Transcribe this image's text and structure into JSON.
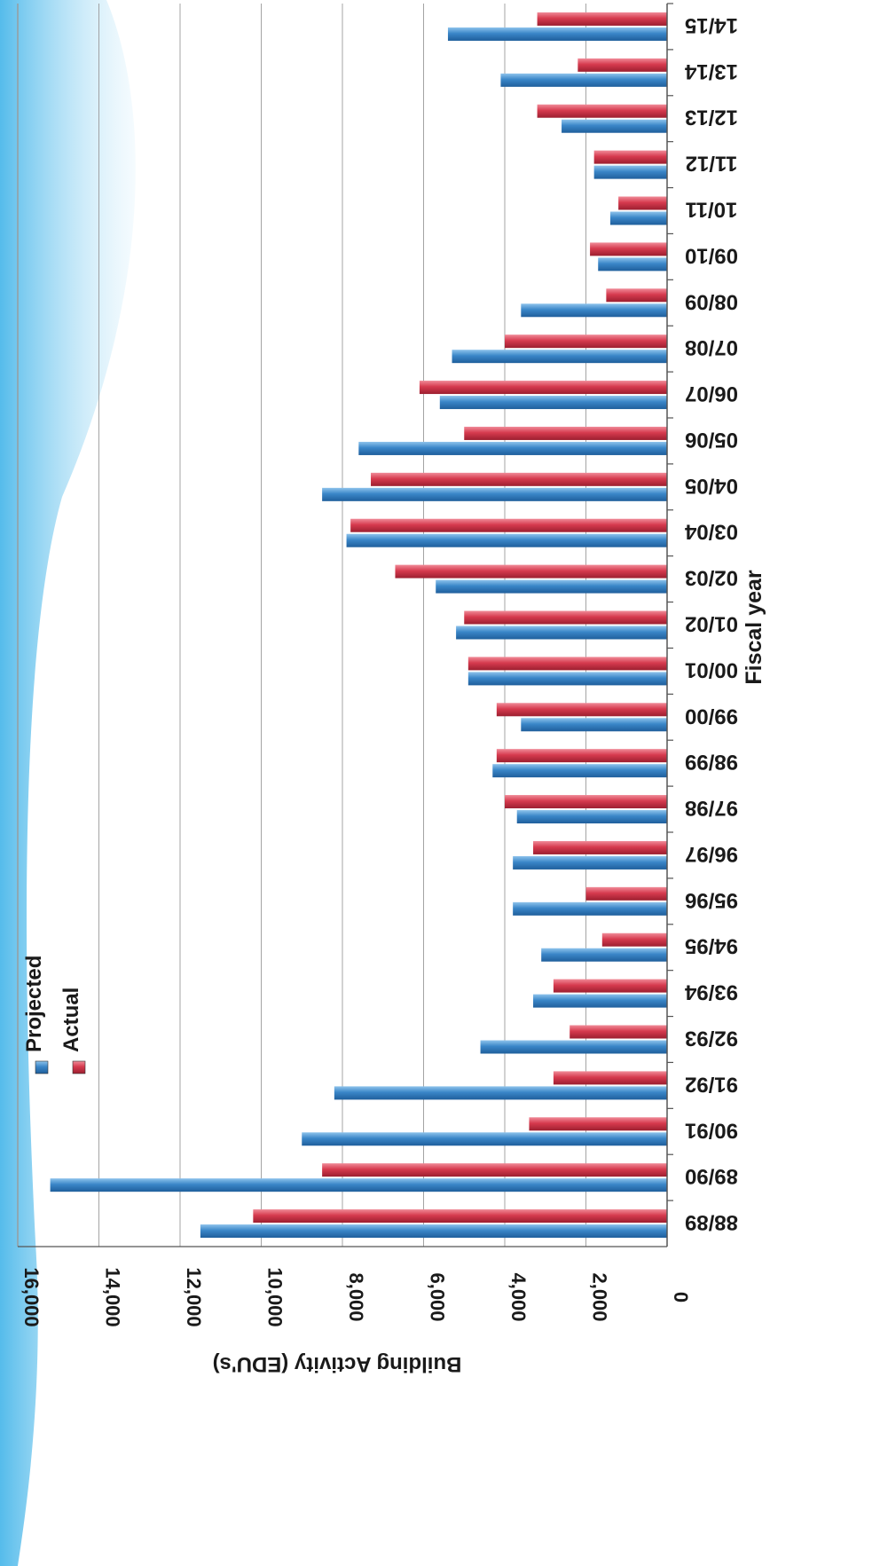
{
  "colors": {
    "projected": "#3a86c8",
    "actual": "#d63a4e",
    "gridline": "#9a9a9a",
    "axis": "#555555",
    "swoosh": "#4cb8ea"
  },
  "chart_data": {
    "type": "bar",
    "orientation": "horizontal-bars-rotated-180",
    "title": "",
    "xlabel": "Fiscal year",
    "ylabel": "Building Activity (EDU's)",
    "ylim": [
      0,
      16000
    ],
    "yticks": [
      "0",
      "2,000",
      "4,000",
      "6,000",
      "8,000",
      "10,000",
      "12,000",
      "14,000",
      "16,000"
    ],
    "ytick_values": [
      0,
      2000,
      4000,
      6000,
      8000,
      10000,
      12000,
      14000,
      16000
    ],
    "grid": true,
    "legend": "top-left (rotated)",
    "categories": [
      "88/89",
      "89/90",
      "90/91",
      "91/92",
      "92/93",
      "93/94",
      "94/95",
      "95/96",
      "96/97",
      "97/98",
      "98/99",
      "99/00",
      "00/01",
      "01/02",
      "02/03",
      "03/04",
      "04/05",
      "05/06",
      "06/07",
      "07/08",
      "08/09",
      "09/10",
      "10/11",
      "11/12",
      "12/13",
      "13/14",
      "14/15"
    ],
    "series": [
      {
        "name": "Projected",
        "values": [
          11500,
          15200,
          9000,
          8200,
          4600,
          3300,
          3100,
          3800,
          3800,
          3700,
          4300,
          3600,
          4900,
          5200,
          5700,
          7900,
          8500,
          7600,
          5600,
          5300,
          3600,
          1700,
          1400,
          1800,
          2600,
          4100,
          5400
        ]
      },
      {
        "name": "Actual",
        "values": [
          10200,
          8500,
          3400,
          2800,
          2400,
          2800,
          1600,
          2000,
          3300,
          4000,
          4200,
          4200,
          4900,
          5000,
          6700,
          7800,
          7300,
          5000,
          6100,
          4000,
          1500,
          1900,
          1200,
          1800,
          3200,
          2200,
          3200
        ]
      }
    ]
  }
}
